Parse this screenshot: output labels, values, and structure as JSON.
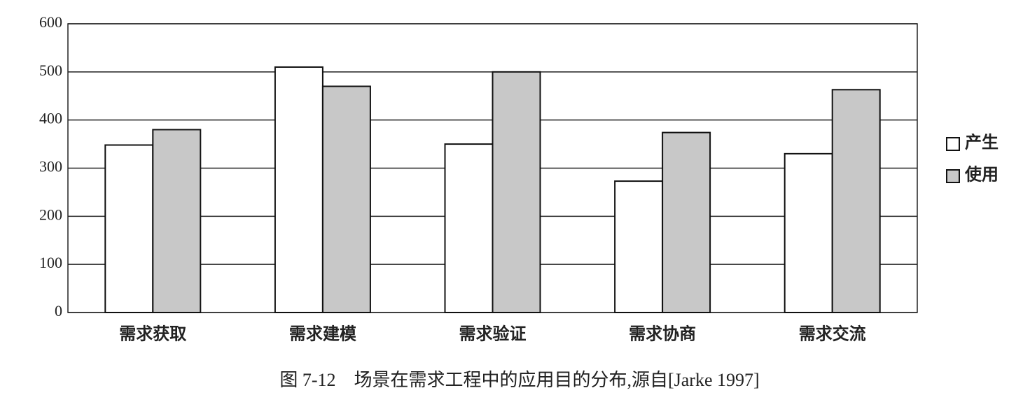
{
  "chart_data": {
    "type": "bar",
    "caption": "图 7-12　场景在需求工程中的应用目的分布,源自[Jarke 1997]",
    "categories": [
      "需求获取",
      "需求建模",
      "需求验证",
      "需求协商",
      "需求交流"
    ],
    "series": [
      {
        "name": "产生",
        "color": "#ffffff",
        "values": [
          348,
          510,
          350,
          273,
          330
        ]
      },
      {
        "name": "使用",
        "color": "#c8c8c8",
        "values": [
          380,
          470,
          500,
          374,
          463
        ]
      }
    ],
    "ylim": [
      0,
      600
    ],
    "yticks": [
      0,
      100,
      200,
      300,
      400,
      500,
      600
    ],
    "grid": true,
    "legend": "right"
  }
}
